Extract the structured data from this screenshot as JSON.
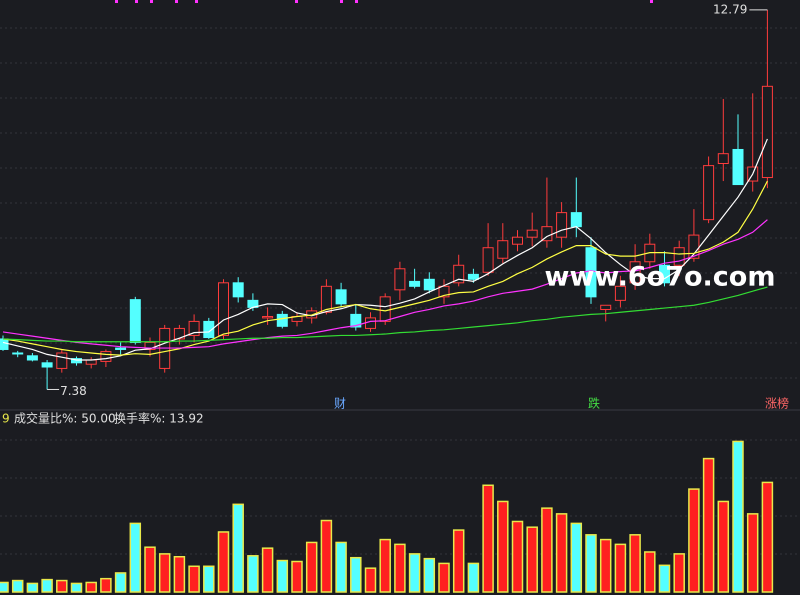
{
  "chart_data": {
    "type": "candlestick",
    "open": [
      8.1,
      7.9,
      7.86,
      7.76,
      7.68,
      7.82,
      7.74,
      7.78,
      7.97,
      8.66,
      7.95,
      7.68,
      8.1,
      8.15,
      8.35,
      8.15,
      8.9,
      8.65,
      8.4,
      8.45,
      8.35,
      8.4,
      8.48,
      8.8,
      8.45,
      8.25,
      8.35,
      8.8,
      8.92,
      8.95,
      8.7,
      8.9,
      9.02,
      9.05,
      9.25,
      9.45,
      9.55,
      9.5,
      9.55,
      9.9,
      9.4,
      8.52,
      8.65,
      8.9,
      9.2,
      9.15,
      9.15,
      9.25,
      9.8,
      10.6,
      10.8,
      10.35,
      10.4
    ],
    "high": [
      8.15,
      7.93,
      7.9,
      7.8,
      7.95,
      7.85,
      7.84,
      7.95,
      8.05,
      8.7,
      8.12,
      8.3,
      8.3,
      8.45,
      8.4,
      8.95,
      8.98,
      8.75,
      8.55,
      8.5,
      8.48,
      8.55,
      8.95,
      8.9,
      8.6,
      8.48,
      8.75,
      9.2,
      9.1,
      9.05,
      8.95,
      9.3,
      9.1,
      9.75,
      9.75,
      9.65,
      9.9,
      10.4,
      10.05,
      10.4,
      9.55,
      8.58,
      9.0,
      9.45,
      9.6,
      9.35,
      9.5,
      9.95,
      10.7,
      11.52,
      11.3,
      11.6,
      12.79
    ],
    "low": [
      7.93,
      7.84,
      7.78,
      7.38,
      7.62,
      7.72,
      7.68,
      7.7,
      7.88,
      8.02,
      7.85,
      7.62,
      8.02,
      8.05,
      8.1,
      8.1,
      8.62,
      8.5,
      8.3,
      8.25,
      8.28,
      8.32,
      8.45,
      8.55,
      8.22,
      8.2,
      8.3,
      8.65,
      8.82,
      8.75,
      8.6,
      8.85,
      8.9,
      9.0,
      9.18,
      9.35,
      9.42,
      9.4,
      9.4,
      9.55,
      8.6,
      8.35,
      8.55,
      8.8,
      9.1,
      8.85,
      9.0,
      9.2,
      9.75,
      10.35,
      10.3,
      10.2,
      10.25
    ],
    "close": [
      7.95,
      7.89,
      7.8,
      7.7,
      7.9,
      7.76,
      7.8,
      7.92,
      7.95,
      8.05,
      8.05,
      8.25,
      8.25,
      8.35,
      8.12,
      8.9,
      8.7,
      8.55,
      8.42,
      8.28,
      8.42,
      8.5,
      8.85,
      8.6,
      8.27,
      8.4,
      8.7,
      9.1,
      8.85,
      8.8,
      8.85,
      9.15,
      8.95,
      9.4,
      9.5,
      9.55,
      9.65,
      9.7,
      9.9,
      9.7,
      8.7,
      8.58,
      8.85,
      9.2,
      9.45,
      8.9,
      9.4,
      9.58,
      10.57,
      10.74,
      10.3,
      10.55,
      11.7
    ],
    "up_color": "#ff3c3c",
    "down_color": "#54ffff",
    "ylim": [
      7.23,
      12.93
    ],
    "high_marker": 12.79,
    "low_marker": 7.38,
    "moving_averages": [
      {
        "color": "#ffffff",
        "values": [
          8.05,
          8.0,
          7.95,
          7.88,
          7.84,
          7.8,
          7.8,
          7.82,
          7.86,
          7.94,
          7.96,
          8.04,
          8.11,
          8.19,
          8.2,
          8.37,
          8.45,
          8.55,
          8.6,
          8.59,
          8.47,
          8.43,
          8.49,
          8.53,
          8.59,
          8.58,
          8.56,
          8.61,
          8.67,
          8.77,
          8.86,
          8.95,
          8.92,
          9.03,
          9.17,
          9.29,
          9.4,
          9.56,
          9.65,
          9.7,
          9.53,
          9.33,
          9.16,
          9.01,
          8.96,
          8.96,
          9.09,
          9.31,
          9.58,
          9.85,
          10.12,
          10.45,
          10.95
        ]
      },
      {
        "color": "#ffff44",
        "values": [
          8.1,
          8.07,
          8.03,
          7.99,
          7.95,
          7.92,
          7.9,
          7.88,
          7.87,
          7.89,
          7.88,
          7.92,
          7.96,
          8.02,
          8.07,
          8.17,
          8.21,
          8.3,
          8.36,
          8.39,
          8.42,
          8.44,
          8.52,
          8.56,
          8.59,
          8.53,
          8.5,
          8.55,
          8.6,
          8.65,
          8.72,
          8.76,
          8.77,
          8.85,
          8.92,
          9.03,
          9.12,
          9.24,
          9.34,
          9.43,
          9.43,
          9.31,
          9.28,
          9.28,
          9.33,
          9.33,
          9.31,
          9.32,
          9.38,
          9.48,
          9.62,
          9.95,
          10.35
        ]
      },
      {
        "color": "#ff33ff",
        "values": [
          8.2,
          8.17,
          8.14,
          8.11,
          8.08,
          8.05,
          8.03,
          8.01,
          7.99,
          7.98,
          7.97,
          7.97,
          7.97,
          7.98,
          7.99,
          8.03,
          8.06,
          8.09,
          8.12,
          8.14,
          8.15,
          8.18,
          8.22,
          8.26,
          8.29,
          8.35,
          8.36,
          8.42,
          8.48,
          8.52,
          8.57,
          8.6,
          8.64,
          8.7,
          8.75,
          8.78,
          8.81,
          8.88,
          8.96,
          9.04,
          9.07,
          9.04,
          9.06,
          9.07,
          9.12,
          9.18,
          9.21,
          9.28,
          9.36,
          9.45,
          9.52,
          9.62,
          9.8
        ]
      },
      {
        "color": "#33dd33",
        "values": [
          8.1,
          8.09,
          8.08,
          8.07,
          8.07,
          8.06,
          8.06,
          8.06,
          8.06,
          8.06,
          8.06,
          8.06,
          8.07,
          8.07,
          8.08,
          8.09,
          8.1,
          8.11,
          8.11,
          8.12,
          8.12,
          8.13,
          8.14,
          8.15,
          8.15,
          8.16,
          8.17,
          8.19,
          8.2,
          8.22,
          8.23,
          8.25,
          8.27,
          8.29,
          8.31,
          8.33,
          8.36,
          8.38,
          8.41,
          8.43,
          8.45,
          8.46,
          8.48,
          8.5,
          8.52,
          8.54,
          8.56,
          8.58,
          8.62,
          8.67,
          8.72,
          8.78,
          8.84
        ]
      }
    ],
    "annotations": [
      "财",
      "跌",
      "涨榜"
    ],
    "indicator_line": [
      "9",
      "成交量比%: 50.00",
      "换手率%: 13.92"
    ],
    "watermark": "www.6o7o.com",
    "volume": {
      "values": [
        10,
        12,
        9,
        13,
        12,
        9,
        10,
        14,
        20,
        72,
        47,
        40,
        37,
        27,
        27,
        63,
        92,
        38,
        46,
        33,
        32,
        52,
        75,
        52,
        36,
        25,
        55,
        50,
        40,
        35,
        30,
        65,
        30,
        112,
        95,
        74,
        68,
        88,
        82,
        72,
        60,
        55,
        50,
        60,
        42,
        28,
        40,
        108,
        140,
        95,
        158,
        82,
        115
      ],
      "ylim": [
        0,
        170
      ],
      "outline_color": "#e8e84a"
    }
  }
}
